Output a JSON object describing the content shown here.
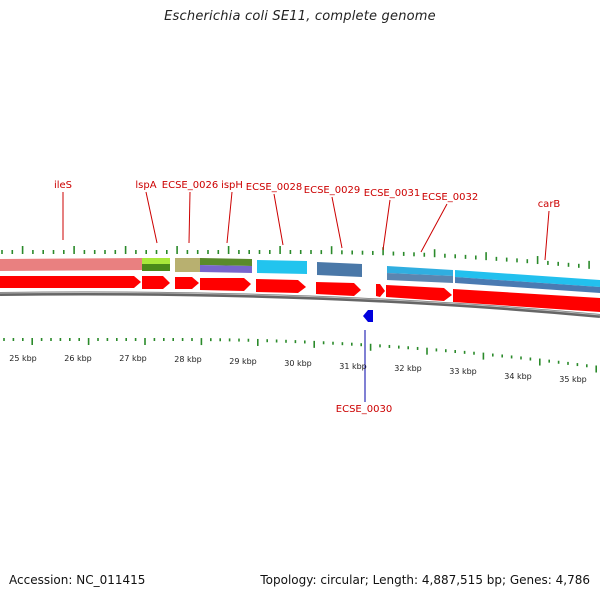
{
  "title": "Escherichia coli SE11, complete genome",
  "footer": {
    "accession": "Accession: NC_011415",
    "summary": "Topology: circular; Length: 4,887,515 bp; Genes: 4,786"
  },
  "colors": {
    "forward_cds": "#ff0000",
    "reverse_cds": "#0000dd",
    "label_forward": "#cc0000",
    "label_reverse": "#0000aa",
    "ticks": "#2a8a2a",
    "backbone": "#888888"
  },
  "gene_labels": [
    {
      "name": "ileS",
      "strand": "+"
    },
    {
      "name": "lspA",
      "strand": "+"
    },
    {
      "name": "ECSE_0026",
      "strand": "+"
    },
    {
      "name": "ispH",
      "strand": "+"
    },
    {
      "name": "ECSE_0028",
      "strand": "+"
    },
    {
      "name": "ECSE_0029",
      "strand": "+"
    },
    {
      "name": "ECSE_0031",
      "strand": "+"
    },
    {
      "name": "ECSE_0032",
      "strand": "+"
    },
    {
      "name": "carB",
      "strand": "+"
    },
    {
      "name": "ECSE_0030",
      "strand": "-"
    }
  ],
  "kbp_labels": [
    "25 kbp",
    "26 kbp",
    "27 kbp",
    "28 kbp",
    "29 kbp",
    "30 kbp",
    "31 kbp",
    "32 kbp",
    "33 kbp",
    "34 kbp",
    "35 kbp"
  ]
}
